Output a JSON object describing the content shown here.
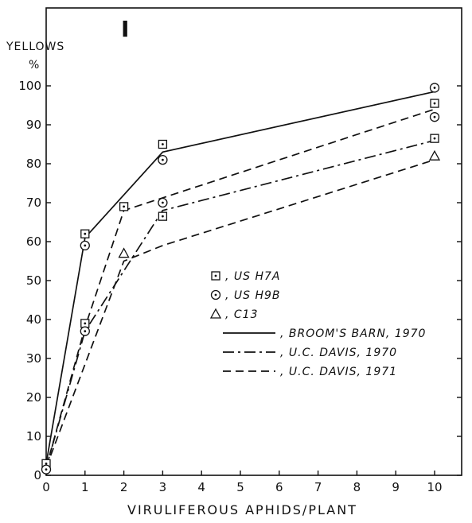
{
  "chart_data": {
    "type": "line",
    "figure_label": "I",
    "ylabel": "YELLOWS",
    "ylabel_unit": "%",
    "xlabel": "VIRULIFEROUS APHIDS/PLANT",
    "xlim": [
      0,
      11
    ],
    "ylim": [
      0,
      110
    ],
    "x_ticks": [
      0,
      1,
      2,
      3,
      4,
      5,
      6,
      7,
      8,
      9,
      10
    ],
    "y_ticks": [
      0,
      10,
      20,
      30,
      40,
      50,
      60,
      70,
      80,
      90,
      100
    ],
    "y_tick_labels": [
      "0",
      "10",
      "20",
      "30",
      "40",
      "50",
      "60",
      "70",
      "80",
      "90",
      "100"
    ],
    "x_tick_labels": [
      "0",
      "1",
      "2",
      "3",
      "4",
      "5",
      "6",
      "7",
      "8",
      "9",
      "10"
    ],
    "legend": {
      "position": "center-right",
      "markers": [
        {
          "symbol": "square-dot",
          "label": "US  H7A"
        },
        {
          "symbol": "circle-dot",
          "label": "US  H9B"
        },
        {
          "symbol": "triangle",
          "label": "C13"
        }
      ],
      "lines": [
        {
          "style": "solid",
          "label": "BROOM'S BARN, 1970"
        },
        {
          "style": "dashdot",
          "label": "U.C. DAVIS, 1970"
        },
        {
          "style": "dashed",
          "label": "U.C. DAVIS, 1971"
        }
      ]
    },
    "series": [
      {
        "line": "solid",
        "x": [
          0,
          1,
          3,
          10
        ],
        "y": [
          3,
          61,
          83,
          98.5
        ]
      },
      {
        "line": "dashdot",
        "x": [
          0,
          1,
          3,
          10
        ],
        "y": [
          2,
          37,
          68,
          86
        ]
      },
      {
        "line": "dashed",
        "x": [
          0,
          1,
          2,
          10
        ],
        "y": [
          2,
          38,
          68,
          94
        ]
      },
      {
        "line": "dashed",
        "x": [
          0,
          2,
          3,
          10
        ],
        "y": [
          2,
          55,
          59,
          81
        ]
      }
    ],
    "points": [
      {
        "marker": "square-dot",
        "x": 0,
        "y": 3
      },
      {
        "marker": "square-dot",
        "x": 1,
        "y": 39
      },
      {
        "marker": "square-dot",
        "x": 1,
        "y": 62
      },
      {
        "marker": "square-dot",
        "x": 2,
        "y": 69
      },
      {
        "marker": "square-dot",
        "x": 3,
        "y": 85
      },
      {
        "marker": "square-dot",
        "x": 3,
        "y": 66.5
      },
      {
        "marker": "square-dot",
        "x": 10,
        "y": 95.5
      },
      {
        "marker": "square-dot",
        "x": 10,
        "y": 86.5
      },
      {
        "marker": "circle-dot",
        "x": 0,
        "y": 1.5
      },
      {
        "marker": "circle-dot",
        "x": 1,
        "y": 59
      },
      {
        "marker": "circle-dot",
        "x": 1,
        "y": 37
      },
      {
        "marker": "circle-dot",
        "x": 3,
        "y": 81
      },
      {
        "marker": "circle-dot",
        "x": 3,
        "y": 70
      },
      {
        "marker": "circle-dot",
        "x": 10,
        "y": 99.5
      },
      {
        "marker": "circle-dot",
        "x": 10,
        "y": 92
      },
      {
        "marker": "triangle",
        "x": 2,
        "y": 57
      },
      {
        "marker": "triangle",
        "x": 10,
        "y": 82
      }
    ]
  }
}
